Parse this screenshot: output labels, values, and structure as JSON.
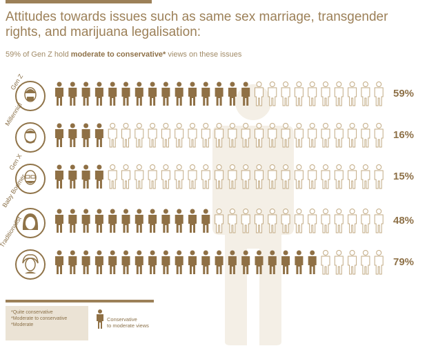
{
  "title": "Attitudes towards issues such as same sex marriage, transgender rights, and marijuana legalisation:",
  "subtitle_prefix": "59% of Gen Z hold ",
  "subtitle_bold": "moderate to conservative*",
  "subtitle_suffix": " views on these issues",
  "colors": {
    "filled": "#8f7045",
    "empty_stroke": "#c2aa83",
    "ghost": "#f4efe6"
  },
  "rows": [
    {
      "label": "Gen Z",
      "percent_label": "59%",
      "filled": 15,
      "total": 25
    },
    {
      "label": "Millennial",
      "percent_label": "16%",
      "filled": 4,
      "total": 25
    },
    {
      "label": "Gen X",
      "percent_label": "15%",
      "filled": 4,
      "total": 25
    },
    {
      "label": "Baby Boomer",
      "percent_label": "48%",
      "filled": 12,
      "total": 25
    },
    {
      "label": "Traditionalist",
      "percent_label": "79%",
      "filled": 20,
      "total": 25
    }
  ],
  "legend": {
    "lines": [
      "*Quite conservative",
      "*Moderate to conservative",
      "*Moderate"
    ],
    "key_label_1": "Conservative",
    "key_label_2": "to moderate views",
    "key_icon": "person-icon"
  }
}
